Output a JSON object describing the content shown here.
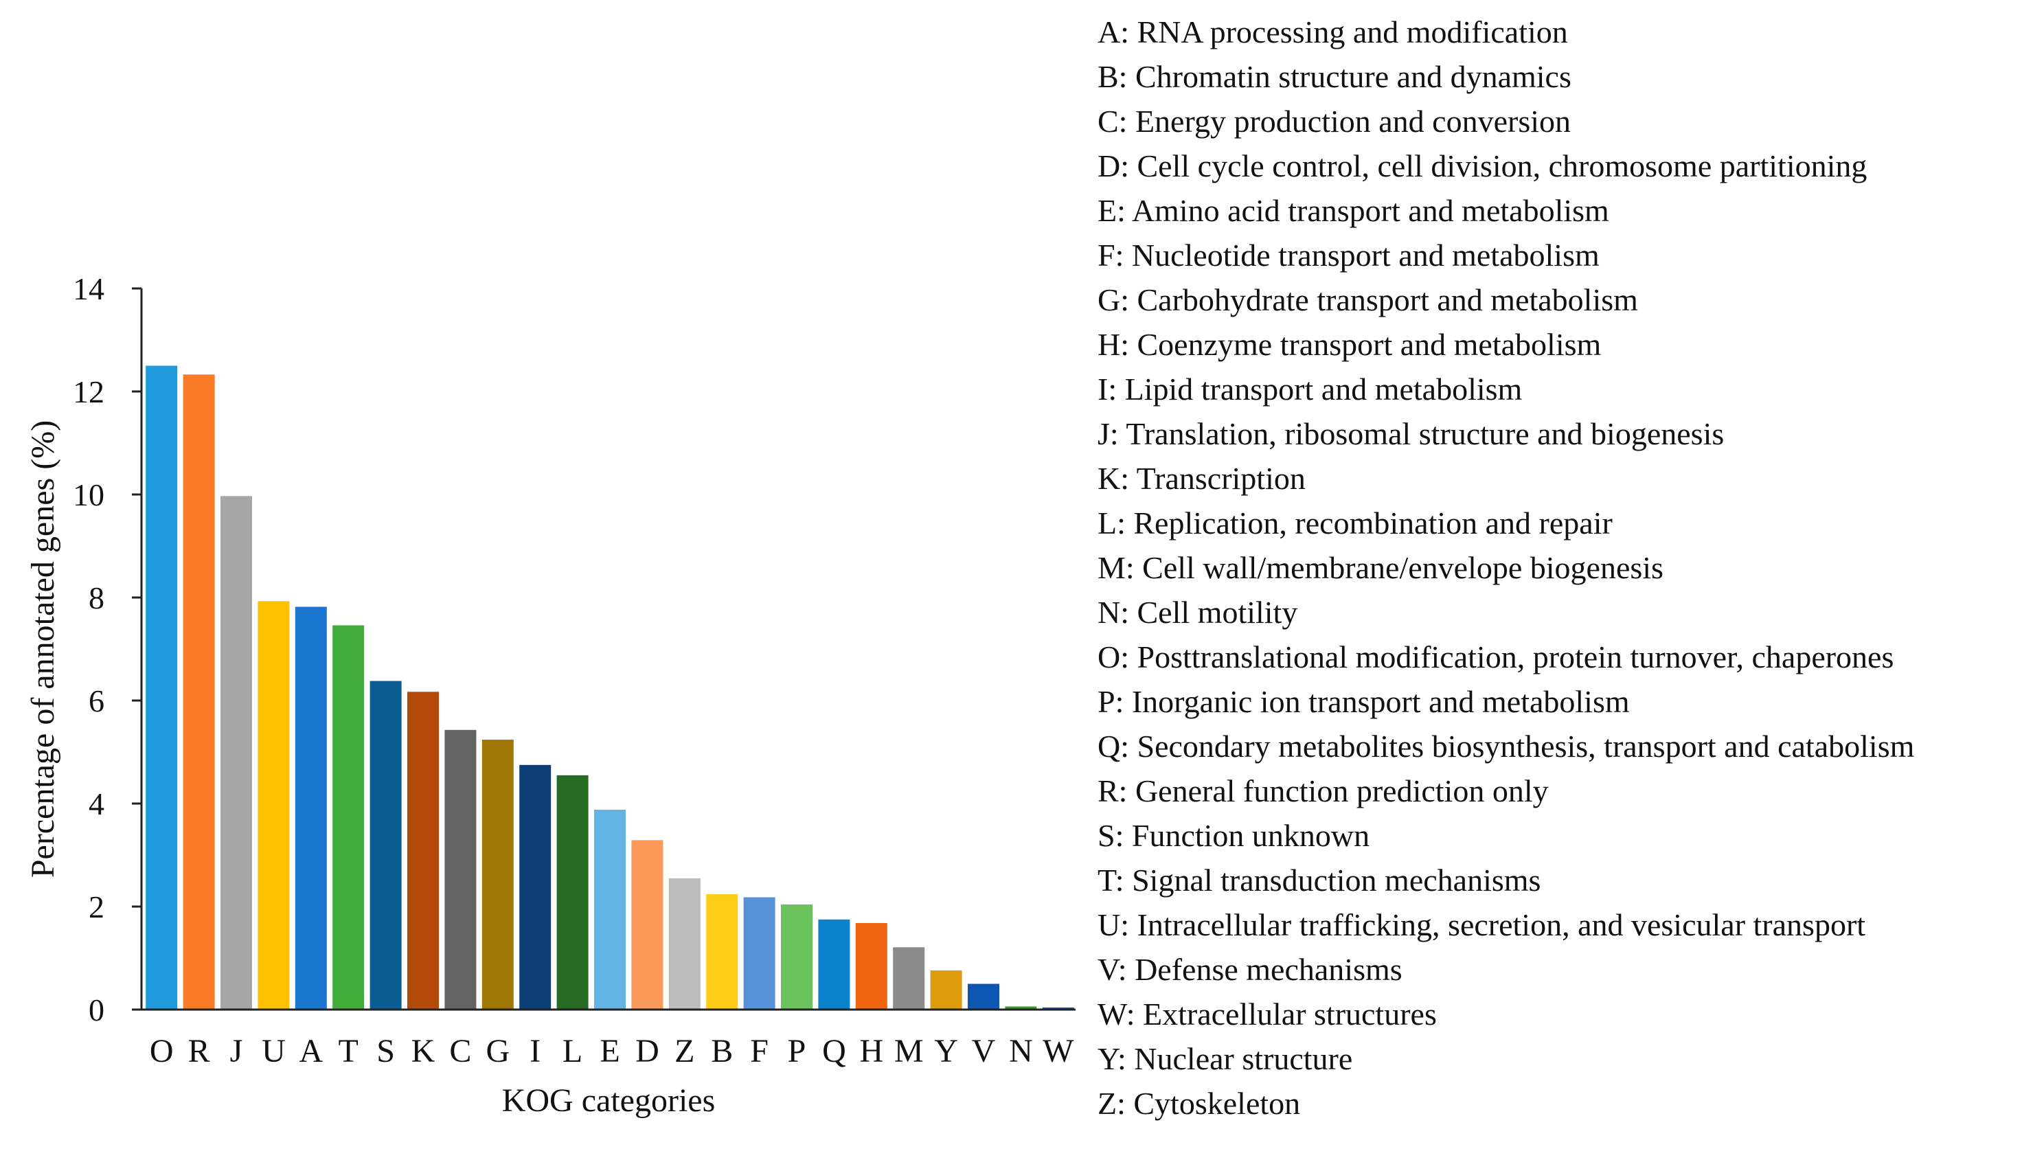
{
  "chart_data": {
    "type": "bar",
    "xlabel": "KOG categories",
    "ylabel": "Percentage of annotated genes (%)",
    "ylim": [
      0,
      14
    ],
    "yticks": [
      0,
      2,
      4,
      6,
      8,
      10,
      12,
      14
    ],
    "grid": false,
    "legend_position": "right",
    "categories": [
      "O",
      "R",
      "J",
      "U",
      "A",
      "T",
      "S",
      "K",
      "C",
      "G",
      "I",
      "L",
      "E",
      "D",
      "Z",
      "B",
      "F",
      "P",
      "Q",
      "H",
      "M",
      "Y",
      "V",
      "N",
      "W"
    ],
    "values": [
      12.5,
      12.33,
      9.97,
      7.93,
      7.82,
      7.46,
      6.38,
      6.17,
      5.43,
      5.24,
      4.75,
      4.55,
      3.88,
      3.29,
      2.55,
      2.24,
      2.18,
      2.04,
      1.75,
      1.68,
      1.21,
      0.76,
      0.5,
      0.06,
      0.04
    ],
    "colors": [
      "#1f9bdb",
      "#f97b27",
      "#a6a6a6",
      "#ffc000",
      "#1b76cf",
      "#43ad3b",
      "#0a5d93",
      "#b44a0a",
      "#636363",
      "#a17705",
      "#0b3f75",
      "#256b21",
      "#63b3e5",
      "#fc9a5c",
      "#bcbcbc",
      "#ffcc18",
      "#5791d8",
      "#6cc35e",
      "#0a83cc",
      "#ef640f",
      "#8a8a8a",
      "#dc9c0c",
      "#0d57b2",
      "#3d9330",
      "#0b5cb0"
    ],
    "legend": [
      "A: RNA processing and modification",
      "B: Chromatin structure and dynamics",
      "C: Energy production and conversion",
      "D: Cell cycle control, cell division, chromosome partitioning",
      "E: Amino acid transport and metabolism",
      "F: Nucleotide transport and metabolism",
      "G: Carbohydrate transport and metabolism",
      "H: Coenzyme transport and metabolism",
      "I: Lipid transport and metabolism",
      "J: Translation, ribosomal structure and biogenesis",
      "K: Transcription",
      "L: Replication, recombination and repair",
      "M: Cell wall/membrane/envelope biogenesis",
      "N: Cell motility",
      "O: Posttranslational modification, protein turnover, chaperones",
      "P: Inorganic ion transport and metabolism",
      "Q: Secondary metabolites biosynthesis, transport and catabolism",
      "R: General function prediction only",
      "S: Function unknown",
      "T: Signal transduction mechanisms",
      "U: Intracellular trafficking, secretion, and vesicular transport",
      "V: Defense mechanisms",
      "W: Extracellular structures",
      "Y: Nuclear structure",
      "Z: Cytoskeleton"
    ]
  }
}
